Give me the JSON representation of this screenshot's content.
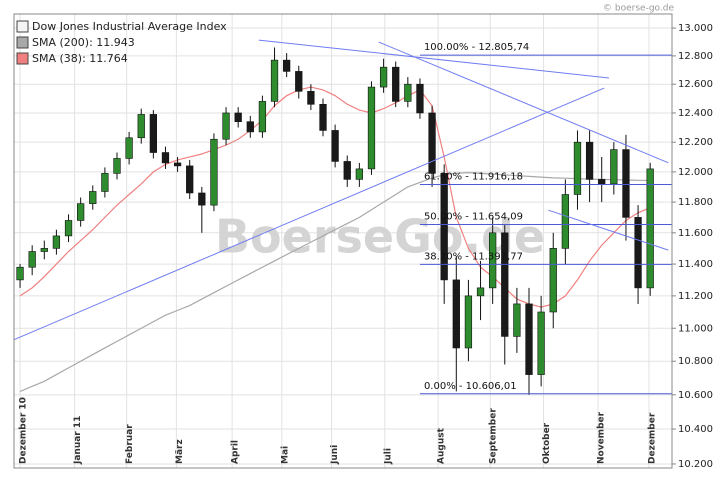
{
  "chart_data": {
    "type": "candlestick",
    "copyright": "© boerse-go.de",
    "watermark": "BoerseGo.de",
    "name": "Dow Jones Industrial Average Index",
    "up_color": "#2e8b2e",
    "down_color": "#1a1a1a",
    "log_scale": true,
    "grid": true,
    "open": [
      11300,
      11380,
      11480,
      11500,
      11580,
      11680,
      11790,
      11870,
      11990,
      12090,
      12230,
      12390,
      12130,
      12060,
      12040,
      11860,
      11780,
      12220,
      12400,
      12340,
      12270,
      12480,
      12770,
      12690,
      12550,
      12460,
      12280,
      12070,
      11950,
      12020,
      12580,
      12720,
      12480,
      12600,
      12400,
      11990,
      11300,
      10880,
      11200,
      11250,
      11600,
      10950,
      11150,
      10720,
      11100,
      11500,
      11850,
      12200,
      11950,
      11920,
      12150,
      11700,
      11250
    ],
    "high": [
      11400,
      11520,
      11550,
      11620,
      11720,
      11830,
      11910,
      12030,
      12130,
      12270,
      12430,
      12420,
      12170,
      12100,
      12080,
      11900,
      12260,
      12440,
      12440,
      12380,
      12520,
      12860,
      12820,
      12730,
      12600,
      12500,
      12320,
      12110,
      12060,
      12620,
      12780,
      12760,
      12650,
      12640,
      12450,
      12050,
      11450,
      11300,
      11420,
      11700,
      11650,
      11250,
      11250,
      11200,
      11600,
      11950,
      12280,
      12280,
      12100,
      12200,
      12250,
      11780,
      12060
    ],
    "low": [
      11250,
      11330,
      11430,
      11460,
      11540,
      11640,
      11750,
      11830,
      11950,
      12050,
      12190,
      12090,
      12020,
      12000,
      11820,
      11600,
      11740,
      12180,
      12300,
      12230,
      12230,
      12440,
      12650,
      12500,
      12420,
      12240,
      12030,
      11900,
      11900,
      11980,
      12540,
      12440,
      12440,
      12360,
      11900,
      11150,
      10620,
      10800,
      11050,
      11150,
      10780,
      10850,
      10600,
      10650,
      11000,
      11400,
      11750,
      11800,
      11800,
      11850,
      11550,
      11150,
      11200
    ],
    "close": [
      11380,
      11480,
      11500,
      11580,
      11680,
      11790,
      11870,
      11990,
      12090,
      12230,
      12390,
      12130,
      12060,
      12040,
      11860,
      11780,
      12220,
      12400,
      12340,
      12270,
      12480,
      12770,
      12690,
      12550,
      12460,
      12280,
      12070,
      11950,
      12020,
      12580,
      12720,
      12480,
      12600,
      12400,
      11990,
      11300,
      10880,
      11200,
      11250,
      11600,
      10950,
      11150,
      10720,
      11100,
      11500,
      11850,
      12200,
      11950,
      11920,
      12150,
      11700,
      11250,
      12020
    ],
    "series": [
      {
        "name": "SMA (200): 11.943",
        "color": "#a8a8a8",
        "values": [
          10620,
          10650,
          10680,
          10720,
          10760,
          10800,
          10840,
          10880,
          10920,
          10960,
          11000,
          11040,
          11080,
          11110,
          11140,
          11180,
          11220,
          11260,
          11300,
          11340,
          11380,
          11420,
          11460,
          11500,
          11540,
          11580,
          11620,
          11660,
          11700,
          11750,
          11800,
          11850,
          11900,
          11930,
          11960,
          11980,
          11990,
          11995,
          11990,
          11985,
          11980,
          11975,
          11970,
          11965,
          11960,
          11958,
          11955,
          11952,
          11950,
          11948,
          11946,
          11944,
          11943
        ]
      },
      {
        "name": "SMA (38): 11.764",
        "color": "#f08080",
        "values": [
          11200,
          11250,
          11320,
          11400,
          11480,
          11550,
          11620,
          11700,
          11780,
          11850,
          11920,
          12000,
          12050,
          12080,
          12100,
          12120,
          12150,
          12180,
          12220,
          12280,
          12350,
          12450,
          12520,
          12560,
          12580,
          12560,
          12520,
          12460,
          12420,
          12400,
          12430,
          12470,
          12520,
          12560,
          12450,
          12100,
          11700,
          11500,
          11380,
          11320,
          11250,
          11180,
          11150,
          11130,
          11150,
          11200,
          11300,
          11420,
          11520,
          11600,
          11680,
          11730,
          11764
        ]
      }
    ],
    "xlim": [
      -0.5,
      53.8
    ],
    "xticks": [
      {
        "value": 0,
        "label": "Dezember 10"
      },
      {
        "value": 4.5,
        "label": "Januar 11"
      },
      {
        "value": 8.8,
        "label": "Februar"
      },
      {
        "value": 12.9,
        "label": "März"
      },
      {
        "value": 17.5,
        "label": "April"
      },
      {
        "value": 21.6,
        "label": "Mai"
      },
      {
        "value": 25.7,
        "label": "Juni"
      },
      {
        "value": 30.1,
        "label": "Juli"
      },
      {
        "value": 34.5,
        "label": "August"
      },
      {
        "value": 38.8,
        "label": "September"
      },
      {
        "value": 43.2,
        "label": "Oktober"
      },
      {
        "value": 47.7,
        "label": "November"
      },
      {
        "value": 51.9,
        "label": "Dezember"
      }
    ],
    "ylim": [
      10177,
      13102
    ],
    "yticks": [
      {
        "value": 10200,
        "label": "10.200"
      },
      {
        "value": 10400,
        "label": "10.400"
      },
      {
        "value": 10600,
        "label": "10.600"
      },
      {
        "value": 10800,
        "label": "10.800"
      },
      {
        "value": 11000,
        "label": "11.000"
      },
      {
        "value": 11200,
        "label": "11.200"
      },
      {
        "value": 11400,
        "label": "11.400"
      },
      {
        "value": 11600,
        "label": "11.600"
      },
      {
        "value": 11800,
        "label": "11.800"
      },
      {
        "value": 12000,
        "label": "12.000"
      },
      {
        "value": 12200,
        "label": "12.200"
      },
      {
        "value": 12400,
        "label": "12.400"
      },
      {
        "value": 12600,
        "label": "12.600"
      },
      {
        "value": 12800,
        "label": "12.800"
      },
      {
        "value": 13000,
        "label": "13.000"
      }
    ],
    "fibonacci": {
      "start": 33,
      "color": "#4b5bd8",
      "levels": [
        {
          "value": 12805.74,
          "label": "100.00% - 12.805,74"
        },
        {
          "value": 11916.18,
          "label": "61.80% - 11.916,18"
        },
        {
          "value": 11654.09,
          "label": "50.00% - 11.654,09"
        },
        {
          "value": 11397.77,
          "label": "38.20% - 11.397,77"
        },
        {
          "value": 10606.01,
          "label": "0.00% - 10.606,01"
        }
      ]
    },
    "trendlines": {
      "color": "#6f7cf0",
      "lines": [
        {
          "x": [
            -0.5,
            48.2
          ],
          "y": [
            10930,
            12573
          ]
        },
        {
          "x": [
            19.7,
            48.6
          ],
          "y": [
            12913,
            12644
          ]
        },
        {
          "x": [
            29.6,
            53.5
          ],
          "y": [
            12899,
            12061
          ]
        },
        {
          "x": [
            43.6,
            53.5
          ],
          "y": [
            11747,
            11489
          ]
        }
      ]
    }
  }
}
